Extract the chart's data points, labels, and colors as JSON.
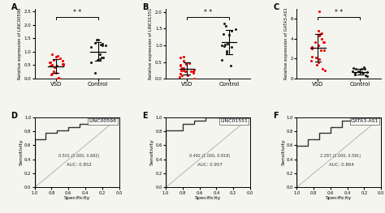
{
  "panels": [
    "A",
    "B",
    "C",
    "D",
    "E",
    "F"
  ],
  "scatter": {
    "A": {
      "ylabel": "Relative expression of LINC00598",
      "vsd_mean": 0.48,
      "vsd_sd": 0.28,
      "ctrl_mean": 1.1,
      "ctrl_sd": 0.38,
      "vsd_n": 22,
      "ctrl_n": 15,
      "ylim": [
        0.0,
        2.6
      ],
      "yticks": [
        0.0,
        0.5,
        1.0,
        1.5,
        2.0,
        2.5
      ]
    },
    "B": {
      "ylabel": "Relative expression of LINC01551",
      "vsd_mean": 0.32,
      "vsd_sd": 0.2,
      "ctrl_mean": 1.05,
      "ctrl_sd": 0.38,
      "vsd_n": 22,
      "ctrl_n": 15,
      "ylim": [
        0.0,
        2.1
      ],
      "yticks": [
        0.0,
        0.5,
        1.0,
        1.5,
        2.0
      ]
    },
    "C": {
      "ylabel": "Relative expression of GATA3-AS1",
      "vsd_mean": 3.0,
      "vsd_sd": 1.3,
      "ctrl_mean": 0.75,
      "ctrl_sd": 0.35,
      "vsd_n": 22,
      "ctrl_n": 15,
      "ylim": [
        0.0,
        7.0
      ],
      "yticks": [
        0,
        2,
        4,
        6
      ]
    }
  },
  "roc": {
    "D": {
      "label": "LINC00598",
      "auc_text": "AUC: 0.852",
      "point_text": "0.501 (1.000, 0.682)",
      "curve_x": [
        1.0,
        1.0,
        0.867,
        0.867,
        0.733,
        0.733,
        0.6,
        0.6,
        0.467,
        0.467,
        0.333,
        0.333,
        0.2,
        0.2,
        0.133,
        0.133,
        0.067,
        0.067,
        0.0
      ],
      "curve_y": [
        0.0,
        0.682,
        0.682,
        0.773,
        0.773,
        0.818,
        0.818,
        0.864,
        0.864,
        0.909,
        0.909,
        0.955,
        0.955,
        1.0,
        1.0,
        1.0,
        1.0,
        1.0,
        1.0
      ]
    },
    "E": {
      "label": "LINC01551",
      "auc_text": "AUC: 0.957",
      "point_text": "0.492 (1.000, 0.818)",
      "curve_x": [
        1.0,
        1.0,
        0.8,
        0.8,
        0.667,
        0.667,
        0.533,
        0.533,
        0.4,
        0.4,
        0.267,
        0.267,
        0.133,
        0.133,
        0.0
      ],
      "curve_y": [
        0.0,
        0.818,
        0.818,
        0.909,
        0.909,
        0.955,
        0.955,
        1.0,
        1.0,
        1.0,
        1.0,
        1.0,
        1.0,
        1.0,
        1.0
      ]
    },
    "F": {
      "label": "GATA3-AS1",
      "auc_text": "AUC: 0.864",
      "point_text": "2.287 (1.000, 0.591)",
      "curve_x": [
        1.0,
        1.0,
        0.867,
        0.867,
        0.733,
        0.733,
        0.6,
        0.6,
        0.467,
        0.467,
        0.333,
        0.333,
        0.2,
        0.2,
        0.067,
        0.067,
        0.0
      ],
      "curve_y": [
        0.0,
        0.591,
        0.591,
        0.682,
        0.682,
        0.773,
        0.773,
        0.864,
        0.864,
        0.955,
        0.955,
        1.0,
        1.0,
        1.0,
        1.0,
        1.0,
        1.0
      ]
    }
  },
  "vsd_color": "#EE0000",
  "ctrl_color": "#222222",
  "bg_color": "#F5F5F0"
}
